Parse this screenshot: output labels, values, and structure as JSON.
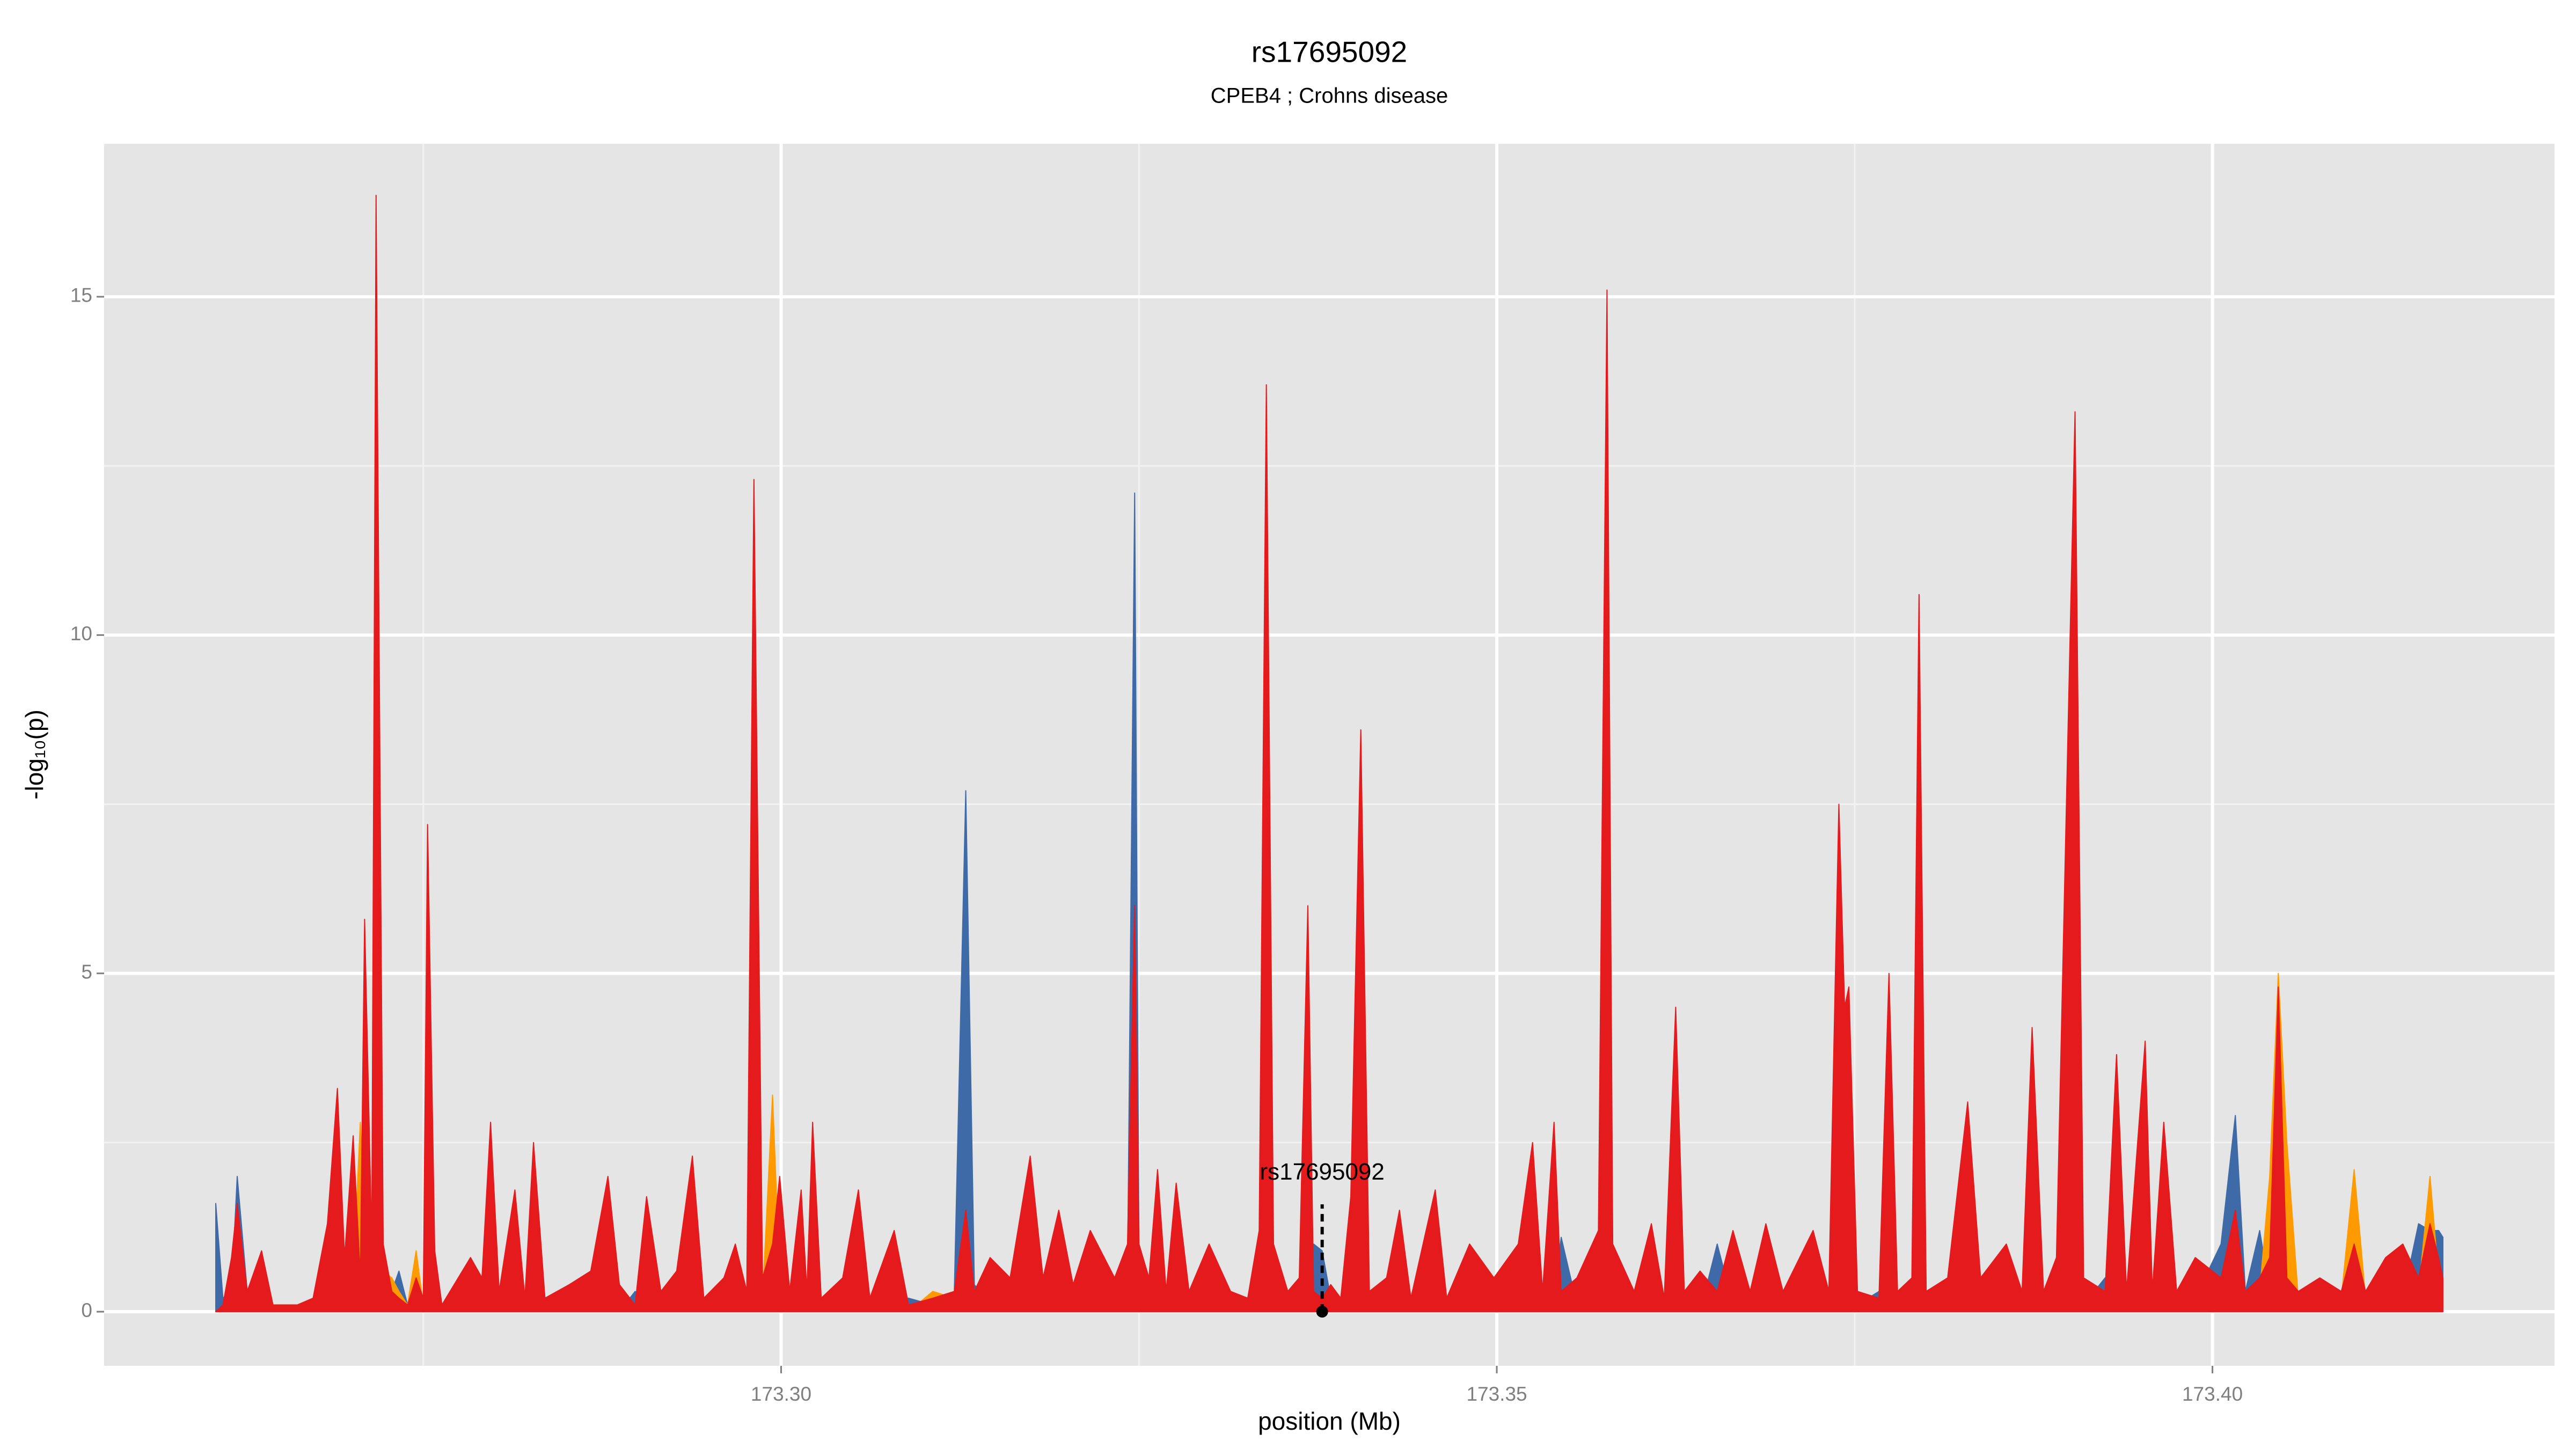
{
  "chart_data": {
    "type": "area",
    "title": "rs17695092",
    "subtitle": "CPEB4 ; Crohns disease",
    "xlabel": "position (Mb)",
    "ylabel": "-log₁₀(p)",
    "xlim": [
      173.2527,
      173.4239
    ],
    "ylim": [
      -0.8,
      17.26
    ],
    "xticks": [
      {
        "value": 173.3,
        "label": "173.30"
      },
      {
        "value": 173.35,
        "label": "173.35"
      },
      {
        "value": 173.4,
        "label": "173.40"
      }
    ],
    "yticks": [
      0,
      5,
      10,
      15
    ],
    "xminor": [
      173.275,
      173.325,
      173.375
    ],
    "yminor": [
      2.5,
      7.5,
      12.5
    ],
    "grid": true,
    "x": [
      173.2605,
      173.261,
      173.2616,
      173.262,
      173.2627,
      173.2637,
      173.2645,
      173.2662,
      173.2673,
      173.2683,
      173.269,
      173.2695,
      173.2701,
      173.2706,
      173.2709,
      173.2714,
      173.2717,
      173.2722,
      173.2728,
      173.2733,
      173.2739,
      173.2745,
      173.275,
      173.2753,
      173.2758,
      173.2763,
      173.2783,
      173.2791,
      173.2797,
      173.2803,
      173.2814,
      173.2821,
      173.2827,
      173.2835,
      173.2852,
      173.2867,
      173.2879,
      173.2887,
      173.2898,
      173.2906,
      173.2916,
      173.2927,
      173.2938,
      173.2946,
      173.296,
      173.2968,
      173.2976,
      173.2981,
      173.2987,
      173.2994,
      173.2999,
      173.3006,
      173.3014,
      173.3018,
      173.3022,
      173.3028,
      173.3043,
      173.3054,
      173.3062,
      173.3079,
      173.3089,
      173.3106,
      173.3121,
      173.3129,
      173.3135,
      173.3146,
      173.316,
      173.3174,
      173.3183,
      173.3194,
      173.3204,
      173.3216,
      173.3233,
      173.3242,
      173.3247,
      173.325,
      173.3257,
      173.3263,
      173.3269,
      173.3276,
      173.3285,
      173.3299,
      173.3314,
      173.3326,
      173.3334,
      173.3339,
      173.3344,
      173.3354,
      173.3362,
      173.3368,
      173.3372,
      173.3378,
      173.3384,
      173.3391,
      173.3398,
      173.3405,
      173.3411,
      173.3423,
      173.3432,
      173.344,
      173.3457,
      173.3465,
      173.3481,
      173.3498,
      173.3515,
      173.3525,
      173.3532,
      173.354,
      173.3545,
      173.3556,
      173.3571,
      173.3577,
      173.3581,
      173.3596,
      173.3608,
      173.3617,
      173.3625,
      173.3631,
      173.3642,
      173.3654,
      173.3665,
      173.3677,
      173.3688,
      173.37,
      173.3721,
      173.3732,
      173.3739,
      173.3743,
      173.3746,
      173.3752,
      173.3767,
      173.3774,
      173.378,
      173.379,
      173.3795,
      173.38,
      173.3815,
      173.3829,
      173.3838,
      173.3856,
      173.3867,
      173.3874,
      173.3882,
      173.3891,
      173.3904,
      173.391,
      173.3925,
      173.3933,
      173.394,
      173.3953,
      173.3958,
      173.3966,
      173.3975,
      173.3988,
      173.4006,
      173.4016,
      173.4023,
      173.4033,
      173.404,
      173.4046,
      173.4052,
      173.406,
      173.4075,
      173.409,
      173.4099,
      173.4107,
      173.4121,
      173.4133,
      173.4144,
      173.4152,
      173.4158,
      173.4161
    ],
    "series": [
      {
        "color": "#3f6aa8",
        "values": [
          1.6,
          0.2,
          0.3,
          2.0,
          0.3,
          0.2,
          0.1,
          0,
          0,
          0.2,
          0.3,
          0.2,
          0.2,
          0.2,
          0.3,
          0.3,
          0.5,
          0.3,
          0.3,
          0.6,
          0.1,
          0.2,
          0.1,
          0.3,
          0.2,
          0,
          0.1,
          0,
          0.2,
          0.1,
          0.1,
          0,
          0.1,
          0,
          0,
          0.1,
          0.1,
          0,
          0.3,
          0.1,
          0,
          0,
          0.1,
          0,
          0,
          0.1,
          0,
          0.3,
          0.1,
          0.2,
          0.1,
          0,
          0.1,
          0,
          0.1,
          0,
          0,
          0.1,
          0,
          0.1,
          0.2,
          0.1,
          0.3,
          7.7,
          0.4,
          0.1,
          0.1,
          0.1,
          0.1,
          0.1,
          0,
          0.1,
          0.1,
          0.5,
          12.1,
          1.0,
          0.1,
          0.1,
          0,
          0.1,
          0,
          0.1,
          0.2,
          0.1,
          0.1,
          0.3,
          0.2,
          0.1,
          0.1,
          0.3,
          1.0,
          0.9,
          0.2,
          0,
          0.1,
          0.3,
          0,
          0,
          0.1,
          0,
          0.1,
          0,
          0.1,
          0,
          0.1,
          0.2,
          0.1,
          0.2,
          1.1,
          0.1,
          0.1,
          0.3,
          0.1,
          0,
          0.1,
          0,
          0.2,
          0.1,
          0,
          1.0,
          0.1,
          0,
          0.1,
          0,
          0.1,
          0,
          0.3,
          0.2,
          0.3,
          0.1,
          0.3,
          0.3,
          0.1,
          0.1,
          0.3,
          0,
          0,
          0.1,
          0.1,
          0.3,
          0,
          0.2,
          0,
          0.1,
          0.3,
          0.1,
          0.5,
          0.2,
          0.1,
          0.3,
          0.1,
          0.2,
          0,
          0.2,
          1.0,
          2.9,
          0.3,
          1.2,
          0.3,
          0.3,
          0.2,
          0.1,
          0.1,
          0.1,
          0.2,
          0.1,
          0.2,
          0.2,
          1.3,
          1.2,
          1.2,
          1.1
        ]
      },
      {
        "color": "#ff9a00",
        "values": [
          0,
          0,
          0.3,
          0.5,
          0.2,
          0.2,
          0,
          0,
          0.1,
          0.5,
          1,
          0.3,
          0.5,
          2.8,
          1,
          0.5,
          2,
          0.6,
          0.5,
          0.3,
          0.1,
          0.9,
          0.1,
          1,
          0.3,
          0,
          0.2,
          0.2,
          0.5,
          0.1,
          0.3,
          0.1,
          0.4,
          0.1,
          0.1,
          0.2,
          0.3,
          0.1,
          0,
          0.2,
          0.1,
          0.1,
          0.3,
          0,
          0.1,
          0.3,
          0.1,
          2,
          0.2,
          3.2,
          0.5,
          0.1,
          0.3,
          0.1,
          0.5,
          0,
          0.1,
          0.3,
          0,
          0.2,
          0,
          0.3,
          0.2,
          0.5,
          0.2,
          0.1,
          0.3,
          0.4,
          0.1,
          0.2,
          0.1,
          0.2,
          0.1,
          0.3,
          1,
          0.3,
          0.1,
          0.3,
          0.1,
          0.3,
          0.1,
          0.5,
          0.1,
          0.1,
          0.3,
          3,
          0.5,
          0.1,
          0.2,
          0.5,
          0.2,
          0.1,
          0.1,
          0.1,
          0.2,
          0.8,
          0.1,
          0.1,
          0.2,
          0,
          0.2,
          0,
          0.2,
          0.1,
          0.2,
          0.3,
          0.1,
          0.3,
          0.1,
          0.1,
          0.3,
          1.5,
          0.3,
          0.1,
          0.2,
          0,
          0.5,
          0.1,
          0.1,
          0.2,
          0.2,
          0.1,
          0.5,
          0.1,
          0.3,
          0.1,
          1,
          0.5,
          0.5,
          0.1,
          0.1,
          0.5,
          0.1,
          0.1,
          1,
          0.1,
          0.1,
          0.3,
          0.1,
          0.2,
          0.1,
          0.5,
          0.1,
          0.2,
          1,
          0.2,
          0.1,
          0.5,
          0.1,
          0.5,
          0.1,
          0.3,
          0.1,
          0.2,
          0.2,
          0.5,
          0.2,
          0.3,
          2.0,
          5.0,
          2.5,
          0.2,
          0.2,
          0.2,
          2.1,
          0.2,
          0.3,
          0.3,
          0.3,
          2.0,
          0.5,
          0.3
        ]
      },
      {
        "color": "#e41a1c",
        "values": [
          0,
          0.1,
          0.8,
          1.6,
          0.3,
          0.9,
          0.1,
          0.1,
          0.2,
          1.3,
          3.3,
          0.8,
          2.6,
          0.5,
          5.8,
          1.0,
          16.5,
          1.0,
          0.3,
          0.2,
          0.1,
          0.5,
          0.2,
          7.2,
          0.9,
          0.1,
          0.8,
          0.5,
          2.8,
          0.3,
          1.8,
          0.2,
          2.5,
          0.2,
          0.4,
          0.6,
          2.0,
          0.4,
          0.1,
          1.7,
          0.3,
          0.6,
          2.3,
          0.2,
          0.5,
          1.0,
          0.3,
          12.3,
          0.5,
          1.0,
          2.0,
          0.3,
          1.8,
          0.3,
          2.8,
          0.2,
          0.5,
          1.8,
          0.2,
          1.2,
          0.1,
          0.2,
          0.3,
          1.5,
          0.3,
          0.8,
          0.5,
          2.3,
          0.5,
          1.5,
          0.4,
          1.2,
          0.5,
          1.0,
          6.0,
          1.0,
          0.5,
          2.1,
          0.3,
          1.9,
          0.3,
          1.0,
          0.3,
          0.2,
          1.2,
          13.7,
          1.0,
          0.3,
          0.5,
          6.0,
          0.3,
          0.2,
          0.4,
          0.2,
          1.7,
          8.6,
          0.3,
          0.5,
          1.5,
          0.2,
          1.8,
          0.2,
          1.0,
          0.5,
          1.0,
          2.5,
          0.3,
          2.8,
          0.3,
          0.5,
          1.2,
          15.1,
          1.0,
          0.3,
          1.3,
          0.2,
          4.5,
          0.3,
          0.6,
          0.3,
          1.2,
          0.3,
          1.3,
          0.3,
          1.2,
          0.3,
          7.5,
          4.5,
          4.8,
          0.3,
          0.2,
          5.0,
          0.3,
          0.5,
          10.6,
          0.3,
          0.5,
          3.1,
          0.5,
          1.0,
          0.3,
          4.2,
          0.3,
          0.8,
          13.3,
          0.5,
          0.3,
          3.8,
          0.3,
          4.0,
          0.3,
          2.8,
          0.3,
          0.8,
          0.5,
          1.5,
          0.3,
          0.5,
          0.8,
          4.8,
          0.5,
          0.3,
          0.5,
          0.3,
          1.0,
          0.3,
          0.8,
          1.0,
          0.5,
          1.3,
          0.8,
          0.5
        ]
      }
    ],
    "annotations": [
      {
        "text": "rs17695092",
        "x": 173.3378,
        "y": 0
      }
    ]
  }
}
